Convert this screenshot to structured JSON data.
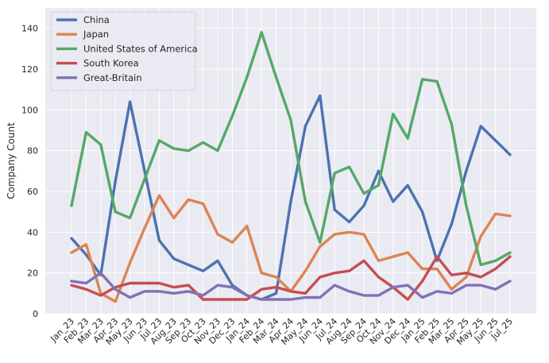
{
  "chart_data": {
    "type": "line",
    "title": "",
    "xlabel": "",
    "ylabel": "Company Count",
    "ylim": [
      0,
      150
    ],
    "yticks": [
      0,
      20,
      40,
      60,
      80,
      100,
      120,
      140
    ],
    "grid": true,
    "legend_position": "top-left",
    "background": "#eaeaf2",
    "categories": [
      "Jan_23",
      "Feb_23",
      "Mar_23",
      "Apr_23",
      "May_23",
      "Jun_23",
      "Jul_23",
      "Aug_23",
      "Sep_23",
      "Oct_23",
      "Nov_23",
      "Dec_23",
      "Jan_24",
      "Feb_24",
      "Mar_24",
      "Apr_24",
      "May_24",
      "Jun_24",
      "Jul_24",
      "Aug_24",
      "Sep_24",
      "Oct_24",
      "Nov_24",
      "Dec_24",
      "Jan_25",
      "Feb_25",
      "Mar_25",
      "Apr_25",
      "May_25",
      "Jun_25",
      "Jul_25"
    ],
    "series": [
      {
        "name": "China",
        "color": "#4c72b0",
        "values": [
          37,
          29,
          19,
          65,
          104,
          70,
          36,
          27,
          24,
          21,
          26,
          14,
          9,
          7,
          10,
          55,
          92,
          107,
          51,
          45,
          53,
          70,
          55,
          63,
          50,
          26,
          44,
          70,
          92,
          85,
          78
        ]
      },
      {
        "name": "Japan",
        "color": "#dd8452",
        "values": [
          30,
          34,
          10,
          6,
          25,
          42,
          58,
          47,
          56,
          54,
          39,
          35,
          43,
          20,
          18,
          11,
          21,
          33,
          39,
          40,
          39,
          26,
          28,
          30,
          22,
          22,
          12,
          18,
          38,
          49,
          48
        ]
      },
      {
        "name": "United States of America",
        "color": "#55a868",
        "values": [
          53,
          89,
          83,
          50,
          47,
          66,
          85,
          81,
          80,
          84,
          80,
          97,
          116,
          138,
          116,
          95,
          55,
          35,
          69,
          72,
          59,
          63,
          98,
          86,
          115,
          114,
          93,
          53,
          24,
          26,
          30
        ]
      },
      {
        "name": "South Korea",
        "color": "#c44e52",
        "values": [
          14,
          12,
          9,
          13,
          15,
          15,
          15,
          13,
          14,
          7,
          7,
          7,
          7,
          12,
          13,
          11,
          10,
          18,
          20,
          21,
          26,
          18,
          13,
          7,
          16,
          28,
          19,
          20,
          18,
          22,
          28
        ]
      },
      {
        "name": "Great-Britain",
        "color": "#8172b3",
        "values": [
          16,
          15,
          20,
          12,
          8,
          11,
          11,
          10,
          11,
          9,
          14,
          13,
          9,
          7,
          7,
          7,
          8,
          8,
          14,
          11,
          9,
          9,
          13,
          14,
          8,
          11,
          10,
          14,
          14,
          12,
          16
        ]
      }
    ]
  }
}
